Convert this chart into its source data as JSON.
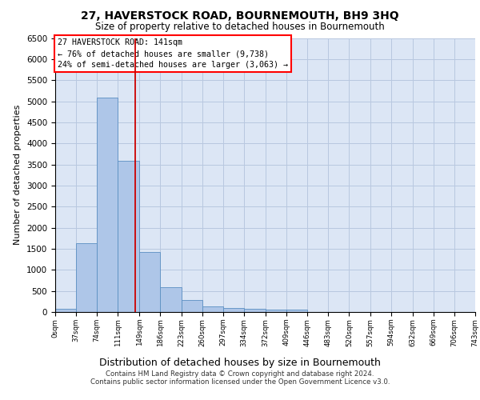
{
  "title": "27, HAVERSTOCK ROAD, BOURNEMOUTH, BH9 3HQ",
  "subtitle": "Size of property relative to detached houses in Bournemouth",
  "xlabel": "Distribution of detached houses by size in Bournemouth",
  "ylabel": "Number of detached properties",
  "footer1": "Contains HM Land Registry data © Crown copyright and database right 2024.",
  "footer2": "Contains public sector information licensed under the Open Government Licence v3.0.",
  "bar_edges": [
    0,
    37,
    74,
    111,
    149,
    186,
    223,
    260,
    297,
    334,
    372,
    409,
    446,
    483,
    520,
    557,
    594,
    632,
    669,
    706,
    743
  ],
  "bar_heights": [
    75,
    1630,
    5080,
    3580,
    1420,
    590,
    290,
    130,
    100,
    75,
    55,
    55,
    0,
    0,
    0,
    0,
    0,
    0,
    0,
    0
  ],
  "bar_color": "#aec6e8",
  "bar_edgecolor": "#5a8fc2",
  "highlight_x": 141,
  "annotation_text_line1": "27 HAVERSTOCK ROAD: 141sqm",
  "annotation_text_line2": "← 76% of detached houses are smaller (9,738)",
  "annotation_text_line3": "24% of semi-detached houses are larger (3,063) →",
  "vline_color": "#cc0000",
  "ylim": [
    0,
    6500
  ],
  "xlim": [
    0,
    743
  ],
  "bg_color": "#dce6f5",
  "plot_bg": "#ffffff",
  "grid_color": "#b8c8e0",
  "yticks": [
    0,
    500,
    1000,
    1500,
    2000,
    2500,
    3000,
    3500,
    4000,
    4500,
    5000,
    5500,
    6000,
    6500
  ]
}
